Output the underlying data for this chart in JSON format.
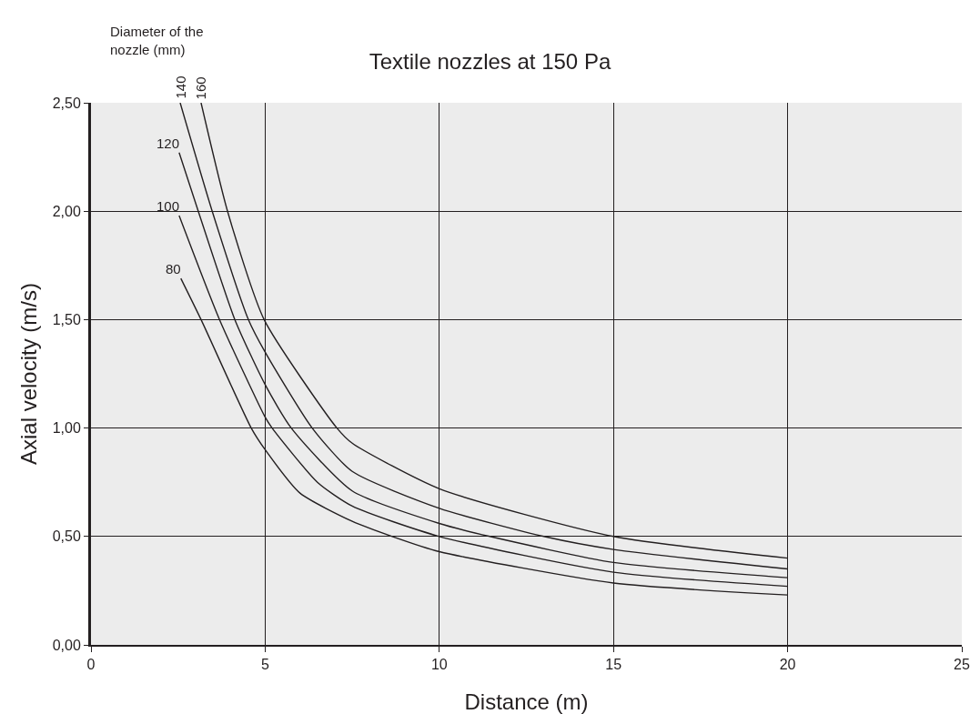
{
  "chart_data": {
    "type": "line",
    "title": "Textile nozzles at 150 Pa",
    "xlabel": "Distance (m)",
    "ylabel": "Axial velocity (m/s)",
    "legend_title": "Diameter of the nozzle (mm)",
    "series": [
      {
        "name": "160",
        "color": "#231f20",
        "x": [
          3.16,
          3.92,
          4.97,
          7.06,
          7.5,
          10,
          15,
          20
        ],
        "values": [
          2.5,
          2.0,
          1.5,
          1.0,
          0.93,
          0.72,
          0.5,
          0.4
        ]
      },
      {
        "name": "140",
        "color": "#231f20",
        "x": [
          2.56,
          3.48,
          4.52,
          5,
          6.35,
          7.5,
          10,
          13,
          15,
          20
        ],
        "values": [
          2.5,
          2.0,
          1.5,
          1.35,
          1.0,
          0.8,
          0.63,
          0.5,
          0.44,
          0.35
        ]
      },
      {
        "name": "120",
        "color": "#231f20",
        "x": [
          2.53,
          3.08,
          4.13,
          5,
          5.75,
          7.5,
          10,
          11.45,
          15,
          20
        ],
        "values": [
          2.27,
          2.0,
          1.5,
          1.2,
          1.0,
          0.71,
          0.56,
          0.5,
          0.38,
          0.31
        ]
      },
      {
        "name": "100",
        "color": "#231f20",
        "x": [
          2.53,
          3.69,
          5,
          5.2,
          6.5,
          7.5,
          10,
          15,
          20
        ],
        "values": [
          1.98,
          1.5,
          1.05,
          1.0,
          0.75,
          0.64,
          0.5,
          0.335,
          0.27
        ]
      },
      {
        "name": "80",
        "color": "#231f20",
        "x": [
          2.58,
          3.16,
          4.6,
          5,
          6,
          7.5,
          8.65,
          10,
          15,
          20
        ],
        "values": [
          1.69,
          1.5,
          1.0,
          0.9,
          0.7,
          0.57,
          0.5,
          0.43,
          0.285,
          0.23
        ]
      }
    ],
    "xlim": [
      0,
      25
    ],
    "xticks": [
      0,
      5,
      10,
      15,
      20,
      25
    ],
    "ylim": [
      0,
      2.5
    ],
    "yticks": [
      {
        "value": 0,
        "label": "0,00"
      },
      {
        "value": 0.5,
        "label": "0,50"
      },
      {
        "value": 1,
        "label": "1,00"
      },
      {
        "value": 1.5,
        "label": "1,50"
      },
      {
        "value": 2,
        "label": "2,00"
      },
      {
        "value": 2.5,
        "label": "2,50"
      }
    ],
    "grid": true,
    "legend": false,
    "marker": "none",
    "line_style": "solid"
  }
}
